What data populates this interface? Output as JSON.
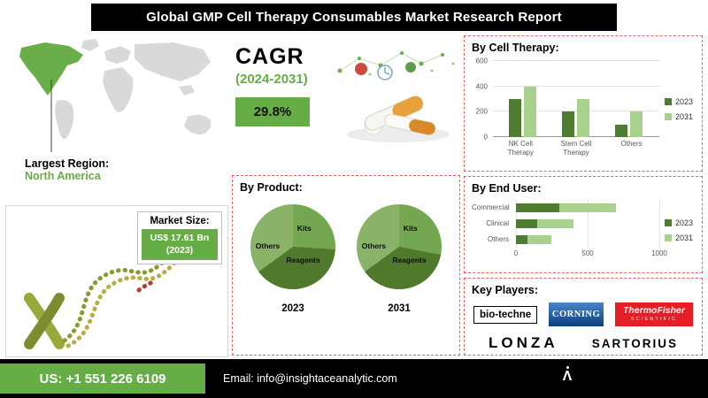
{
  "header": {
    "title": "Global GMP Cell Therapy Consumables Market Research Report"
  },
  "region": {
    "label": "Largest Region:",
    "value": "North America"
  },
  "market_size": {
    "label": "Market Size:",
    "value": "US$ 17.61 Bn (2023)"
  },
  "cagr": {
    "label": "CAGR",
    "period": "(2024-2031)",
    "value": "29.8%"
  },
  "chart_data": [
    {
      "type": "bar",
      "title": "By Cell Therapy:",
      "categories": [
        "NK Cell Therapy",
        "Stem Cell Therapy",
        "Others"
      ],
      "series": [
        {
          "name": "2023",
          "values": [
            300,
            200,
            100
          ]
        },
        {
          "name": "2031",
          "values": [
            400,
            300,
            200
          ]
        }
      ],
      "ylim": [
        0,
        600
      ],
      "yticks": [
        0,
        200,
        400,
        600
      ],
      "grid": true,
      "legend_position": "right"
    },
    {
      "type": "bar",
      "orientation": "horizontal",
      "stacked": true,
      "title": "By End User:",
      "categories": [
        "Commercial",
        "Clinical",
        "Others"
      ],
      "series": [
        {
          "name": "2023",
          "values": [
            300,
            150,
            80
          ]
        },
        {
          "name": "2031",
          "values": [
            400,
            250,
            170
          ]
        }
      ],
      "xlim": [
        0,
        1000
      ],
      "xticks": [
        0,
        500,
        1000
      ],
      "legend_position": "right"
    },
    {
      "type": "pie",
      "title": "By Product:",
      "year": "2023",
      "labels": [
        "Kits",
        "Reagents",
        "Others"
      ],
      "values": [
        26,
        39,
        35
      ]
    },
    {
      "type": "pie",
      "title": "By Product:",
      "year": "2031",
      "labels": [
        "Kits",
        "Reagents",
        "Others"
      ],
      "values": [
        28,
        37,
        35
      ]
    }
  ],
  "key_players": {
    "title": "Key Players:",
    "players": [
      {
        "name": "bio-techne"
      },
      {
        "name": "CORNING"
      },
      {
        "name": "ThermoFisher",
        "sub": "SCIENTIFIC"
      },
      {
        "name": "LONZA"
      },
      {
        "name": "SARTORIUS"
      }
    ]
  },
  "footer": {
    "phone": "US: +1 551 226 6109",
    "email": "Email: info@insightaceanalytic.com"
  },
  "colors": {
    "accent": "#67ad45",
    "series": [
      "#4e7c31",
      "#a9d18e"
    ],
    "pie": [
      "#74a850",
      "#50792c",
      "#8ab268"
    ],
    "banner": "#000000",
    "corning_blue": "#0b3e7e",
    "thermo_red": "#e31e24",
    "dashed_border": "#e06666"
  }
}
